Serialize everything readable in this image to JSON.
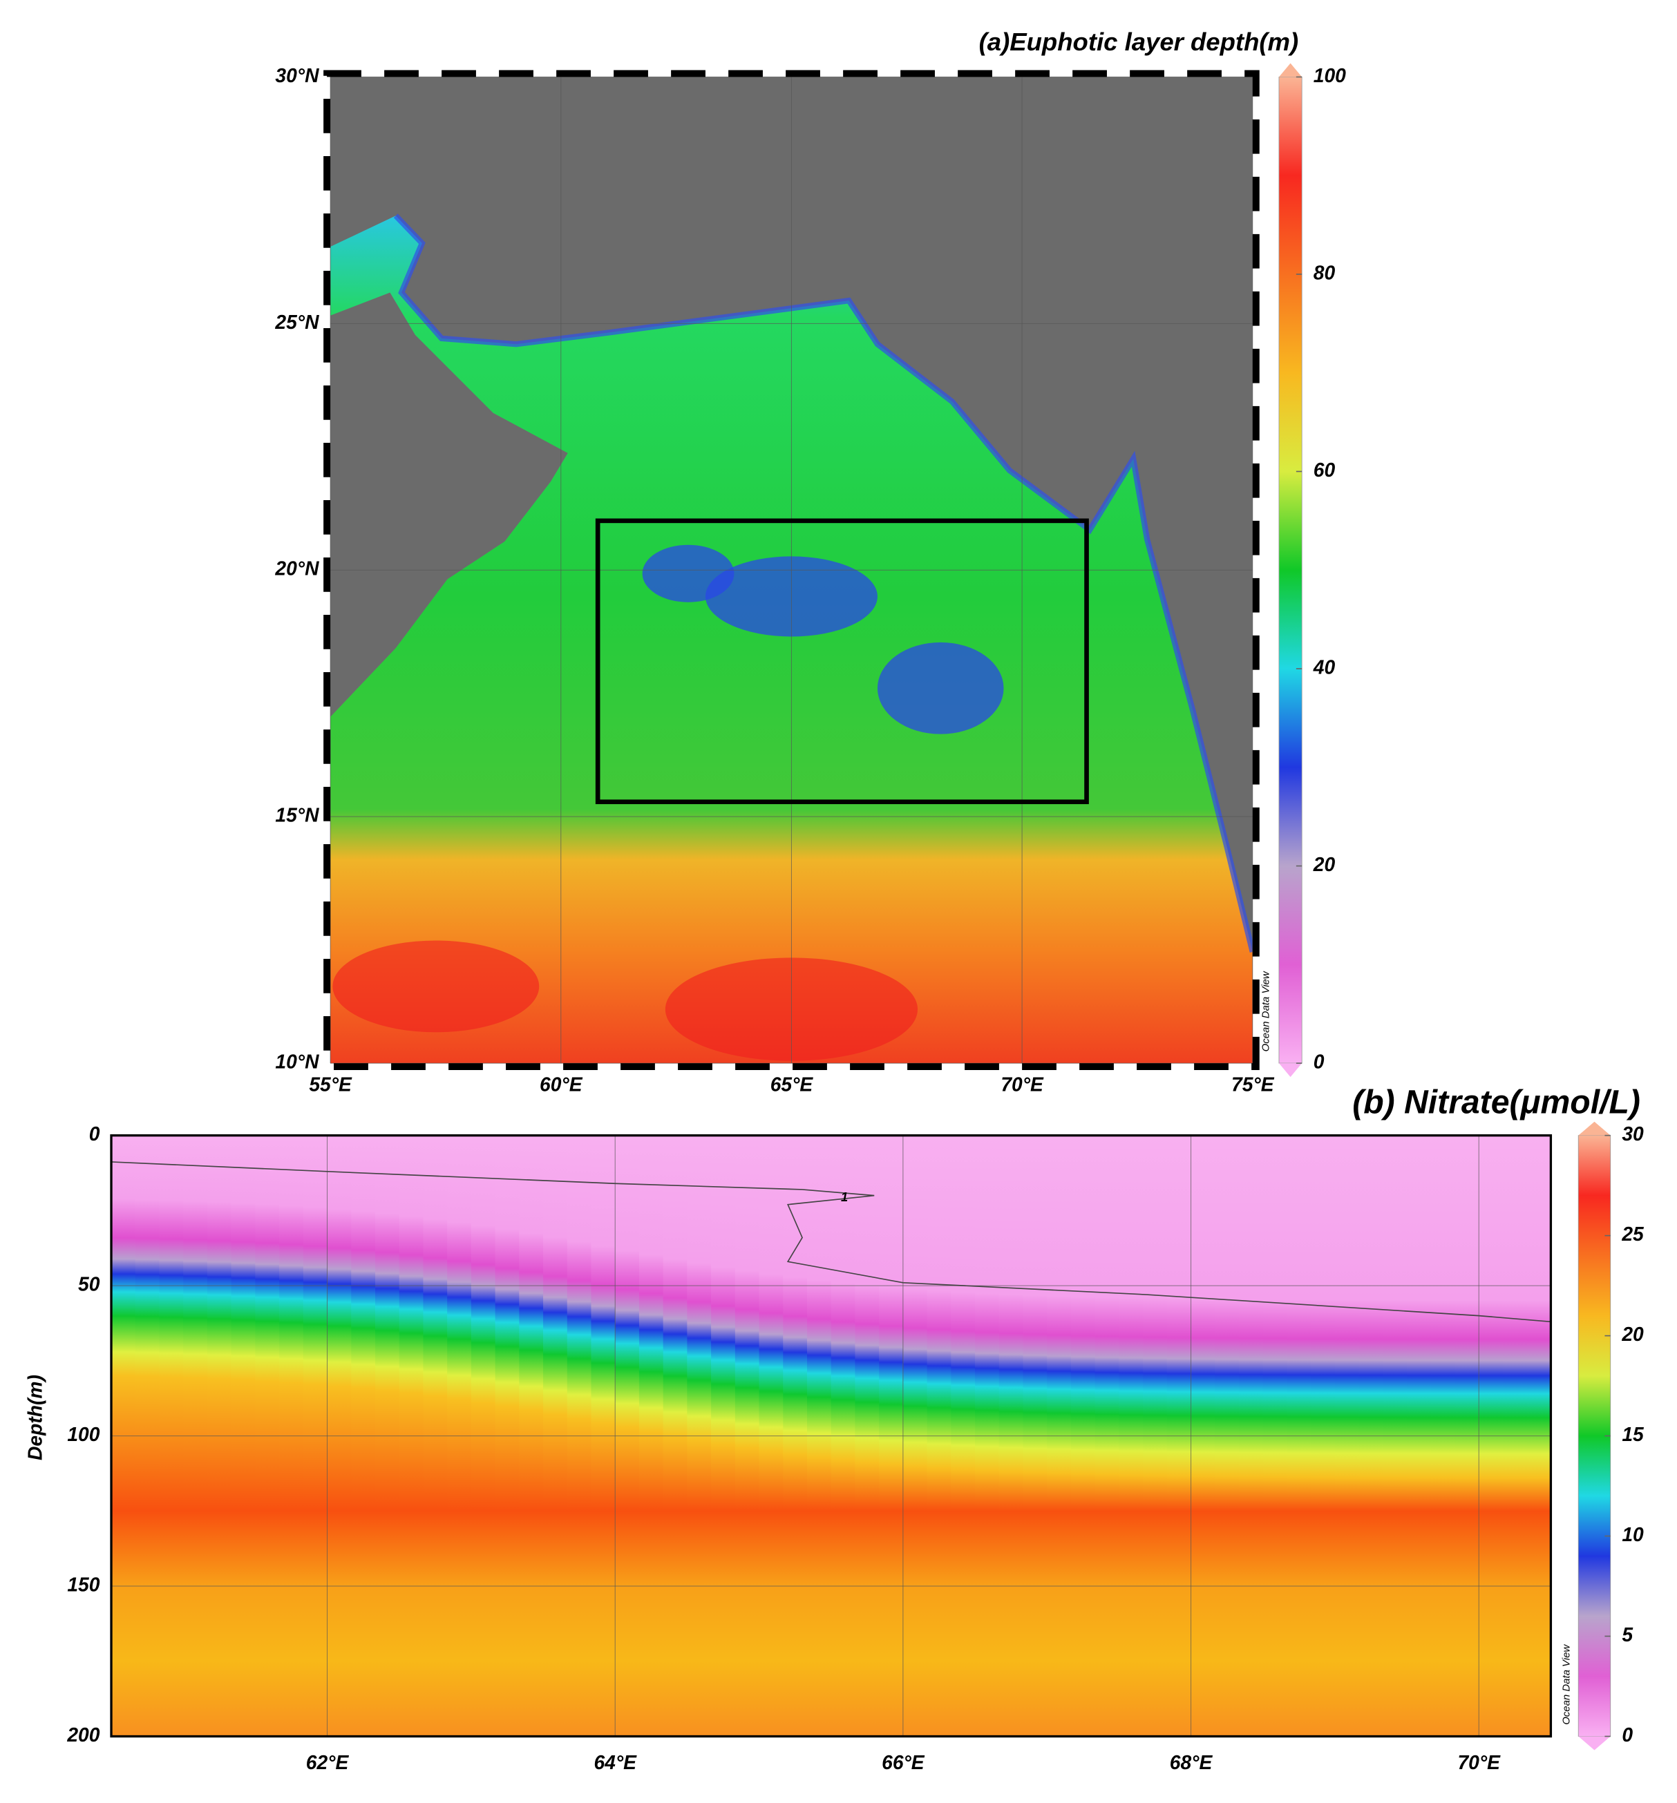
{
  "chart_data": [
    {
      "type": "map",
      "title": "(a)Euphotic layer depth(m)",
      "xlim": [
        55,
        75
      ],
      "ylim": [
        10,
        30
      ],
      "xticks": [
        {
          "value": 55,
          "label": "55°E"
        },
        {
          "value": 60,
          "label": "60°E"
        },
        {
          "value": 65,
          "label": "65°E"
        },
        {
          "value": 70,
          "label": "70°E"
        },
        {
          "value": 75,
          "label": "75°E"
        }
      ],
      "yticks": [
        {
          "value": 10,
          "label": "10°N"
        },
        {
          "value": 15,
          "label": "15°N"
        },
        {
          "value": 20,
          "label": "20°N"
        },
        {
          "value": 25,
          "label": "25°N"
        },
        {
          "value": 30,
          "label": "30°N"
        }
      ],
      "grid": true,
      "box_x": [
        60.8,
        71.4
      ],
      "box_y": [
        15.3,
        21.0
      ],
      "clim": [
        0,
        100
      ],
      "cticks": [
        0,
        20,
        40,
        60,
        80,
        100
      ],
      "colormap": [
        "#f9b0f2",
        "#e060d4",
        "#b8a4cc",
        "#2038e0",
        "#20d8e4",
        "#10c828",
        "#d8ec40",
        "#f8b820",
        "#f87020",
        "#f82820",
        "#fab494"
      ],
      "watermark": "Ocean Data View"
    },
    {
      "type": "contour",
      "title": "(b) Nitrate(μmol/L)",
      "ylabel": "Depth(m)",
      "xlim": [
        60.5,
        70.5
      ],
      "ylim": [
        200,
        0
      ],
      "xticks": [
        {
          "value": 62,
          "label": "62°E"
        },
        {
          "value": 64,
          "label": "64°E"
        },
        {
          "value": 66,
          "label": "66°E"
        },
        {
          "value": 68,
          "label": "68°E"
        },
        {
          "value": 70,
          "label": "70°E"
        }
      ],
      "yticks": [
        0,
        50,
        100,
        150,
        200
      ],
      "grid": true,
      "contours": [
        {
          "level": 1,
          "x": [
            60.5,
            62.0,
            64.0,
            65.3,
            65.8,
            65.2,
            65.3,
            65.2,
            66.0,
            67.7,
            70.0,
            70.5
          ],
          "y": [
            8.8,
            12,
            16,
            18,
            20,
            23,
            34,
            42,
            49,
            53,
            60,
            62
          ]
        }
      ],
      "clim": [
        0,
        30
      ],
      "cticks": [
        0,
        5,
        10,
        15,
        20,
        25,
        30
      ],
      "colormap": [
        "#f9b0f2",
        "#e060d4",
        "#b8a4cc",
        "#2038e0",
        "#20d8e4",
        "#10c828",
        "#d8ec40",
        "#f8b820",
        "#f87020",
        "#f82820",
        "#fab494"
      ],
      "watermark": "Ocean Data View"
    }
  ]
}
